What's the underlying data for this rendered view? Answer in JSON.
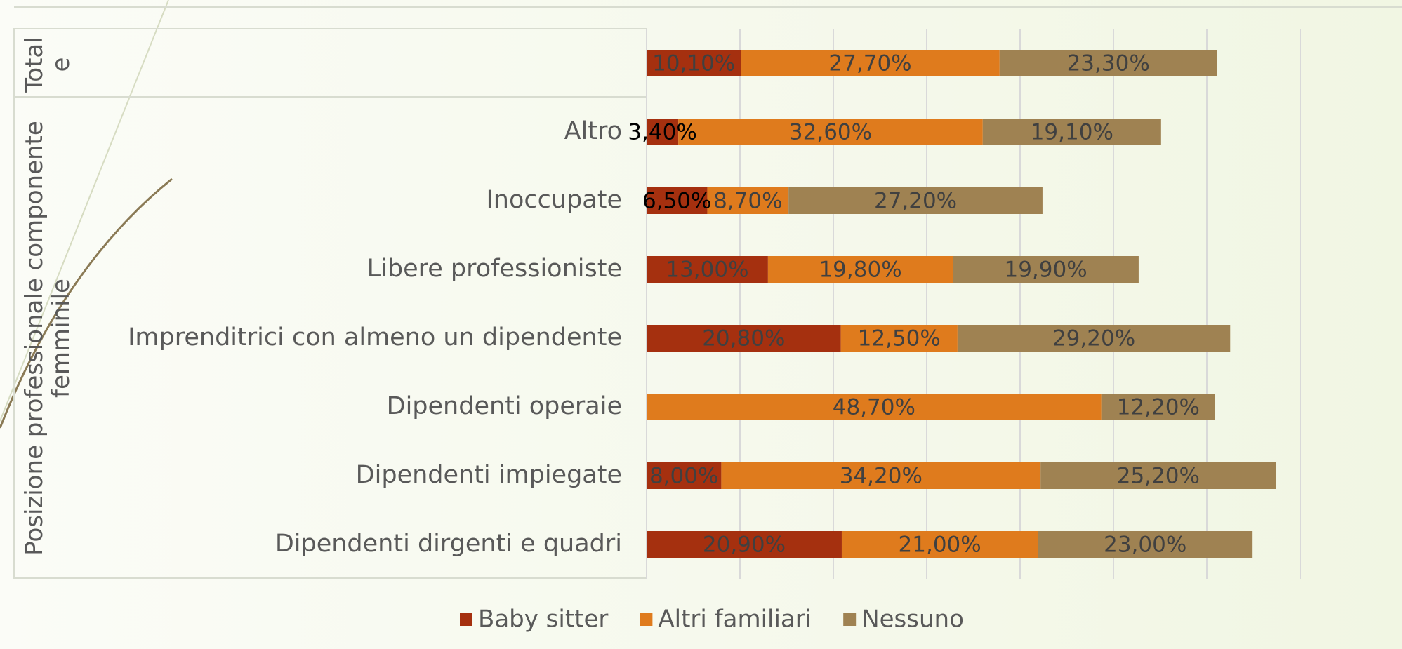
{
  "chart_data": {
    "type": "stacked_bar_horizontal",
    "groups": [
      {
        "label": "Totale",
        "rows": [
          0,
          0
        ]
      },
      {
        "label": "Posizione professionale componente femminile",
        "rows": [
          1,
          7
        ]
      }
    ],
    "categories": [
      null,
      "Altro",
      "Inoccupate",
      "Libere professioniste",
      "Imprenditrici con almeno un dipendente",
      "Dipendenti operaie",
      "Dipendenti impiegate",
      "Dipendenti dirgenti e quadri"
    ],
    "series": [
      {
        "name": "Baby sitter",
        "color": "#a5300f",
        "values": [
          10.1,
          3.4,
          6.5,
          13.0,
          20.8,
          null,
          8.0,
          20.9
        ],
        "value_labels": [
          "10,10%",
          "3,40%",
          "6,50%",
          "13,00%",
          "20,80%",
          null,
          "8,00%",
          "20,90%"
        ]
      },
      {
        "name": "Altri familiari",
        "color": "#df7b1d",
        "values": [
          27.7,
          32.6,
          8.7,
          19.8,
          12.5,
          48.7,
          34.2,
          21.0
        ],
        "value_labels": [
          "27,70%",
          "32,60%",
          "8,70%",
          "19,80%",
          "12,50%",
          "48,70%",
          "34,20%",
          "21,00%"
        ]
      },
      {
        "name": "Nessuno",
        "color": "#9f8252",
        "values": [
          23.3,
          19.1,
          27.2,
          19.9,
          29.2,
          12.2,
          25.2,
          23.0
        ],
        "value_labels": [
          "23,30%",
          "19,10%",
          "27,20%",
          "19,90%",
          "29,20%",
          "12,20%",
          "25,20%",
          "23,00%"
        ]
      }
    ],
    "xlim": [
      0,
      70
    ],
    "xticks": [
      0,
      10,
      20,
      30,
      40,
      50,
      60,
      70
    ],
    "grid": true,
    "legend": "bottom"
  }
}
